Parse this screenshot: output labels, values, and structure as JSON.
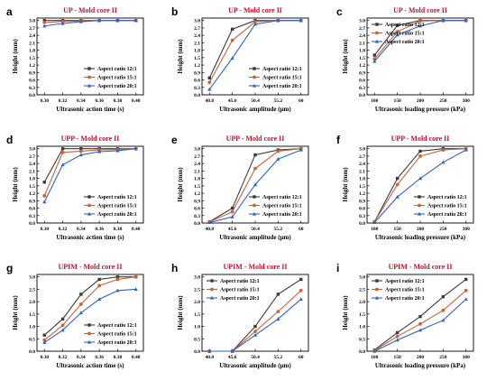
{
  "colors": {
    "series_12": "#3b3b3b",
    "series_15": "#c8643a",
    "series_20": "#2f63c8",
    "title": "#c8102e"
  },
  "chart_data": [
    {
      "id": "a",
      "letter": "a",
      "type": "line",
      "title": "UP - Mold core II",
      "xlabel": "Ultrasonic action time (s)",
      "ylabel": "Height (mm)",
      "x": [
        0.3,
        0.32,
        0.34,
        0.36,
        0.38,
        0.4
      ],
      "xticks": [
        "0.30",
        "0.32",
        "0.34",
        "0.36",
        "0.38",
        "0.40"
      ],
      "ylim": [
        0,
        3.0
      ],
      "yticks": [
        "0.0",
        "0.3",
        "0.6",
        "0.9",
        "1.2",
        "1.5",
        "1.8",
        "2.1",
        "2.4",
        "2.7",
        "3.0"
      ],
      "legend": "bottom-right",
      "series": [
        {
          "name": "Aspect ratio 12:1",
          "marker": "square",
          "values": [
            3.0,
            3.0,
            3.0,
            3.0,
            3.0,
            3.0
          ]
        },
        {
          "name": "Aspect ratio 15:1",
          "marker": "circle",
          "values": [
            2.92,
            2.96,
            2.98,
            3.0,
            3.0,
            3.0
          ]
        },
        {
          "name": "Aspect ratio 20:1",
          "marker": "triangle",
          "values": [
            2.78,
            2.88,
            2.95,
            3.0,
            3.0,
            3.0
          ]
        }
      ]
    },
    {
      "id": "b",
      "letter": "b",
      "type": "line",
      "title": "UP - Mold core II",
      "xlabel": "Ultrasonic amplitude (μm)",
      "ylabel": "Height (mm)",
      "x": [
        40.8,
        45.6,
        50.4,
        55.2,
        60
      ],
      "xticks": [
        "40.8",
        "45.6",
        "50.4",
        "55.2",
        "60"
      ],
      "ylim": [
        0,
        3.0
      ],
      "yticks": [
        "0.0",
        "0.3",
        "0.6",
        "0.9",
        "1.2",
        "1.5",
        "1.8",
        "2.1",
        "2.4",
        "2.7",
        "3.0"
      ],
      "legend": "bottom-right",
      "series": [
        {
          "name": "Aspect ratio 12:1",
          "marker": "square",
          "values": [
            0.68,
            2.65,
            3.0,
            3.0,
            3.0
          ]
        },
        {
          "name": "Aspect ratio 15:1",
          "marker": "circle",
          "values": [
            0.5,
            2.2,
            2.95,
            3.0,
            3.0
          ]
        },
        {
          "name": "Aspect ratio 20:1",
          "marker": "triangle",
          "values": [
            0.22,
            1.48,
            2.85,
            3.0,
            3.0
          ]
        }
      ]
    },
    {
      "id": "c",
      "letter": "c",
      "type": "line",
      "title": "UP - Mold core II",
      "xlabel": "Ultrasonic loading pressure (kPa)",
      "ylabel": "Height (mm)",
      "x": [
        100,
        150,
        200,
        250,
        300
      ],
      "xticks": [
        "100",
        "150",
        "200",
        "250",
        "300"
      ],
      "ylim": [
        0,
        3.0
      ],
      "yticks": [
        "0.0",
        "0.3",
        "0.6",
        "0.9",
        "1.2",
        "1.5",
        "1.8",
        "2.1",
        "2.4",
        "2.7",
        "3.0"
      ],
      "legend": "top-left",
      "series": [
        {
          "name": "Aspect ratio 12:1",
          "marker": "square",
          "values": [
            1.6,
            2.8,
            3.0,
            3.0,
            3.0
          ]
        },
        {
          "name": "Aspect ratio 15:1",
          "marker": "circle",
          "values": [
            1.45,
            2.55,
            2.98,
            3.0,
            3.0
          ]
        },
        {
          "name": "Aspect ratio 20:1",
          "marker": "triangle",
          "values": [
            1.35,
            2.42,
            2.78,
            3.0,
            3.0
          ]
        }
      ]
    },
    {
      "id": "d",
      "letter": "d",
      "type": "line",
      "title": "UPP - Mold core II",
      "xlabel": "Ultrasonic action time (s)",
      "ylabel": "Height (mm)",
      "x": [
        0.3,
        0.32,
        0.34,
        0.36,
        0.38,
        0.4
      ],
      "xticks": [
        "0.30",
        "0.32",
        "0.34",
        "0.36",
        "0.38",
        "0.40"
      ],
      "ylim": [
        0,
        3.0
      ],
      "yticks": [
        "0.0",
        "0.3",
        "0.6",
        "0.9",
        "1.2",
        "1.5",
        "1.8",
        "2.1",
        "2.4",
        "2.7",
        "3.0"
      ],
      "legend": "bottom-right",
      "series": [
        {
          "name": "Aspect ratio 12:1",
          "marker": "square",
          "values": [
            1.65,
            3.0,
            3.0,
            3.0,
            3.0,
            3.0
          ]
        },
        {
          "name": "Aspect ratio 15:1",
          "marker": "circle",
          "values": [
            1.1,
            2.85,
            2.9,
            2.95,
            2.97,
            3.0
          ]
        },
        {
          "name": "Aspect ratio 20:1",
          "marker": "triangle",
          "values": [
            0.85,
            2.35,
            2.75,
            2.88,
            2.92,
            3.0
          ]
        }
      ]
    },
    {
      "id": "e",
      "letter": "e",
      "type": "line",
      "title": "UPP - Mold core II",
      "xlabel": "Ultrasonic amplitude (μm)",
      "ylabel": "Height (mm)",
      "x": [
        40.8,
        45.6,
        50.4,
        55.2,
        60
      ],
      "xticks": [
        "40.8",
        "45.6",
        "50.4",
        "55.2",
        "60"
      ],
      "ylim": [
        0,
        3.0
      ],
      "yticks": [
        "0.0",
        "0.3",
        "0.6",
        "0.9",
        "1.2",
        "1.5",
        "1.8",
        "2.1",
        "2.4",
        "2.7",
        "3.0"
      ],
      "legend": "bottom-right",
      "series": [
        {
          "name": "Aspect ratio 12:1",
          "marker": "square",
          "values": [
            0.05,
            0.6,
            2.75,
            2.95,
            3.0
          ]
        },
        {
          "name": "Aspect ratio 15:1",
          "marker": "circle",
          "values": [
            0.05,
            0.45,
            2.2,
            2.9,
            3.0
          ]
        },
        {
          "name": "Aspect ratio 20:1",
          "marker": "triangle",
          "values": [
            0.02,
            0.25,
            1.55,
            2.58,
            2.95
          ]
        }
      ]
    },
    {
      "id": "f",
      "letter": "f",
      "type": "line",
      "title": "UPP - Mold core II",
      "xlabel": "Ultrasonic loading pressure (kPa)",
      "ylabel": "Height (mm)",
      "x": [
        100,
        150,
        200,
        250,
        300
      ],
      "xticks": [
        "100",
        "150",
        "200",
        "250",
        "300"
      ],
      "ylim": [
        0,
        3.0
      ],
      "yticks": [
        "0.0",
        "0.3",
        "0.6",
        "0.9",
        "1.2",
        "1.5",
        "1.8",
        "2.1",
        "2.4",
        "2.7",
        "3.0"
      ],
      "legend": "bottom-right",
      "series": [
        {
          "name": "Aspect ratio 12:1",
          "marker": "square",
          "values": [
            0.05,
            1.8,
            2.9,
            3.0,
            3.0
          ]
        },
        {
          "name": "Aspect ratio 15:1",
          "marker": "circle",
          "values": [
            0.05,
            1.55,
            2.7,
            2.95,
            3.0
          ]
        },
        {
          "name": "Aspect ratio 20:1",
          "marker": "triangle",
          "values": [
            0.02,
            1.05,
            1.8,
            2.45,
            2.95
          ]
        }
      ]
    },
    {
      "id": "g",
      "letter": "g",
      "type": "line",
      "title": "UPIM - Mold core II",
      "xlabel": "Ultrasonic action time (s)",
      "ylabel": "Height (mm)",
      "x": [
        0.3,
        0.32,
        0.34,
        0.36,
        0.38,
        0.4
      ],
      "xticks": [
        "0.30",
        "0.32",
        "0.34",
        "0.36",
        "0.38",
        "0.40"
      ],
      "ylim": [
        0,
        3.0
      ],
      "yticks": [
        "0.0",
        "0.5",
        "1.0",
        "1.5",
        "2.0",
        "2.5",
        "3.0"
      ],
      "legend": "bottom-right",
      "series": [
        {
          "name": "Aspect ratio 12:1",
          "marker": "square",
          "values": [
            0.65,
            1.3,
            2.3,
            2.9,
            3.0,
            3.0
          ]
        },
        {
          "name": "Aspect ratio 15:1",
          "marker": "circle",
          "values": [
            0.45,
            1.05,
            1.9,
            2.65,
            2.9,
            3.0
          ]
        },
        {
          "name": "Aspect ratio 20:1",
          "marker": "triangle",
          "values": [
            0.35,
            0.85,
            1.55,
            2.1,
            2.45,
            2.5
          ]
        }
      ]
    },
    {
      "id": "h",
      "letter": "h",
      "type": "line",
      "title": "UPIM - Mold core II",
      "xlabel": "Ultrasonic amplitude (μm)",
      "ylabel": "Height (mm)",
      "x": [
        40.8,
        45.6,
        50.4,
        55.2,
        60
      ],
      "xticks": [
        "40.8",
        "45.6",
        "50.4",
        "55.2",
        "60"
      ],
      "ylim": [
        0,
        3.0
      ],
      "yticks": [
        "0.0",
        "0.5",
        "1.0",
        "1.5",
        "2.0",
        "2.5",
        "3.0"
      ],
      "legend": "top-left",
      "series": [
        {
          "name": "Aspect ratio 12:1",
          "marker": "square",
          "values": [
            0.0,
            0.0,
            1.0,
            2.3,
            2.9
          ]
        },
        {
          "name": "Aspect ratio 15:1",
          "marker": "circle",
          "values": [
            0.0,
            0.0,
            0.8,
            1.6,
            2.45
          ]
        },
        {
          "name": "Aspect ratio 20:1",
          "marker": "triangle",
          "values": [
            0.0,
            0.0,
            0.65,
            1.3,
            2.1
          ]
        }
      ]
    },
    {
      "id": "i",
      "letter": "i",
      "type": "line",
      "title": "UPIM - Mold core II",
      "xlabel": "Ultrasonic loading pressure (kPa)",
      "ylabel": "Height (mm)",
      "x": [
        100,
        150,
        200,
        250,
        300
      ],
      "xticks": [
        "100",
        "150",
        "200",
        "250",
        "300"
      ],
      "ylim": [
        0,
        3.0
      ],
      "yticks": [
        "0.0",
        "0.5",
        "1.0",
        "1.5",
        "2.0",
        "2.5",
        "3.0"
      ],
      "legend": "top-left",
      "series": [
        {
          "name": "Aspect ratio 12:1",
          "marker": "square",
          "values": [
            0.05,
            0.75,
            1.4,
            2.2,
            2.9
          ]
        },
        {
          "name": "Aspect ratio 15:1",
          "marker": "circle",
          "values": [
            0.03,
            0.6,
            1.1,
            1.65,
            2.45
          ]
        },
        {
          "name": "Aspect ratio 20:1",
          "marker": "triangle",
          "values": [
            0.0,
            0.45,
            0.85,
            1.25,
            2.1
          ]
        }
      ]
    }
  ]
}
